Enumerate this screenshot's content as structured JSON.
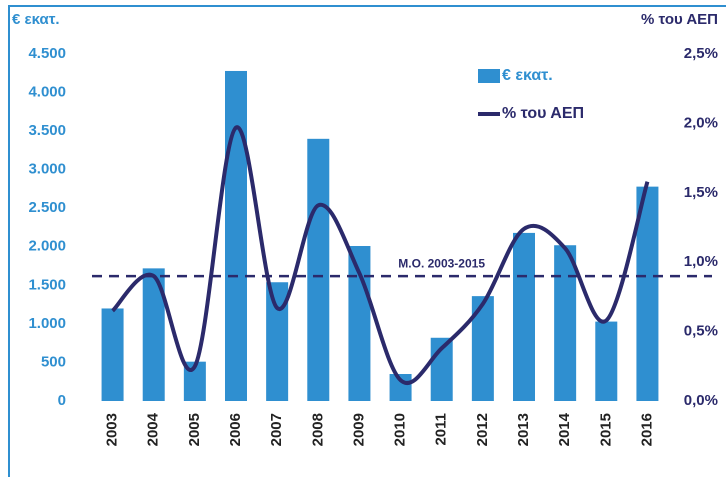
{
  "chart_data": {
    "type": "bar_line",
    "y_axis_label": "€ εκατ.",
    "y2_axis_label": "% του ΑΕΠ",
    "categories": [
      "2003",
      "2004",
      "2005",
      "2006",
      "2007",
      "2008",
      "2009",
      "2010",
      "2011",
      "2012",
      "2013",
      "2014",
      "2015",
      "2016"
    ],
    "series": [
      {
        "name": "€ εκατ.",
        "type": "bar",
        "color": "#2f8fd0",
        "values": [
          1200,
          1720,
          510,
          4280,
          1540,
          3400,
          2010,
          350,
          820,
          1360,
          2180,
          2020,
          1030,
          2780
        ]
      },
      {
        "name": "% του ΑΕΠ",
        "type": "line",
        "axis": "y2",
        "color": "#2b2a6b",
        "values": [
          0.65,
          0.9,
          0.25,
          1.97,
          0.67,
          1.41,
          0.92,
          0.15,
          0.38,
          0.7,
          1.24,
          1.1,
          0.58,
          1.58
        ]
      }
    ],
    "reference_line": {
      "label": "Μ.Ο. 2003-2015",
      "value": 0.9,
      "axis": "y2"
    },
    "ylim": [
      0,
      4500
    ],
    "yticks": [
      0,
      500,
      {
        "value": 1000,
        "label": "1.000"
      },
      {
        "value": 1500,
        "label": "1.500"
      },
      {
        "value": 2000,
        "label": "2.000"
      },
      {
        "value": 2500,
        "label": "2.500"
      },
      {
        "value": 3000,
        "label": "3.000"
      },
      {
        "value": 3500,
        "label": "3.500"
      },
      {
        "value": 4000,
        "label": "4.000"
      },
      {
        "value": 4500,
        "label": "4.500"
      }
    ],
    "y2lim": [
      0,
      2.5
    ],
    "y2ticks": [
      {
        "value": 0,
        "label": "0,0%"
      },
      {
        "value": 0.5,
        "label": "0,5%"
      },
      {
        "value": 1,
        "label": "1,0%"
      },
      {
        "value": 1.5,
        "label": "1,5%"
      },
      {
        "value": 2,
        "label": "2,0%"
      },
      {
        "value": 2.5,
        "label": "2,5%"
      }
    ],
    "grid": false,
    "legend": "top-right"
  }
}
